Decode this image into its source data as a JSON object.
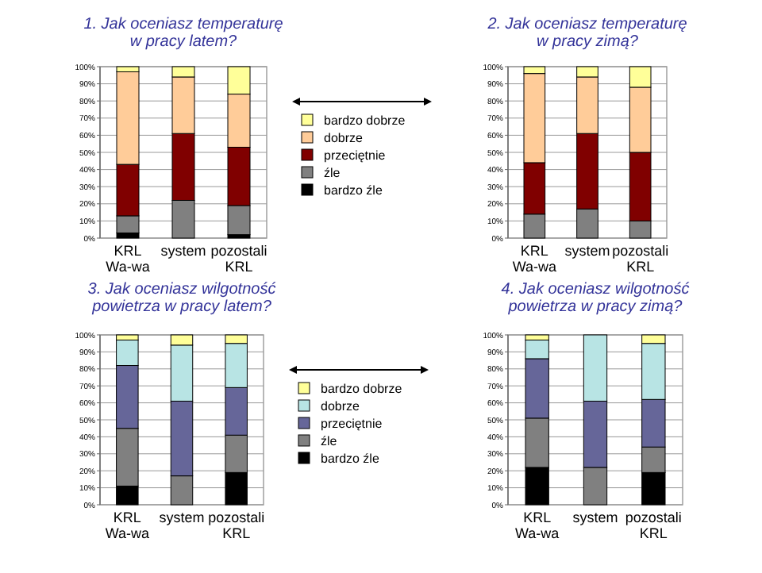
{
  "chart_data": [
    {
      "type": "bar",
      "stacked": true,
      "title": "1. Jak oceniasz temperaturę\nw pracy latem?",
      "categories": [
        "KRL Wa-wa",
        "system",
        "pozostali KRL"
      ],
      "ylim": [
        0,
        100
      ],
      "yticks": [
        {
          "value": 0,
          "label": "0%"
        },
        {
          "value": 10,
          "label": "10%"
        },
        {
          "value": 20,
          "label": "20%"
        },
        {
          "value": 30,
          "label": "30%"
        },
        {
          "value": 40,
          "label": "40%"
        },
        {
          "value": 50,
          "label": "50%"
        },
        {
          "value": 60,
          "label": "60%"
        },
        {
          "value": 70,
          "label": "70%"
        },
        {
          "value": 80,
          "label": "80%"
        },
        {
          "value": 90,
          "label": "90%"
        },
        {
          "value": 100,
          "label": "100%"
        }
      ],
      "grid": "y",
      "legend": "right",
      "series": [
        {
          "name": "bardzo źle",
          "color": "#000000",
          "values": [
            3,
            0,
            2
          ]
        },
        {
          "name": "źle",
          "color": "#808080",
          "values": [
            10,
            22,
            17
          ]
        },
        {
          "name": "przeciętnie",
          "color": "#800000",
          "values": [
            30,
            39,
            34
          ]
        },
        {
          "name": "dobrze",
          "color": "#ffcc99",
          "values": [
            54,
            33,
            31
          ]
        },
        {
          "name": "bardzo dobrze",
          "color": "#ffff99",
          "values": [
            3,
            6,
            16
          ]
        }
      ]
    },
    {
      "type": "bar",
      "stacked": true,
      "title": "2. Jak oceniasz temperaturę\nw pracy zimą?",
      "categories": [
        "KRL Wa-wa",
        "system",
        "pozostali KRL"
      ],
      "ylim": [
        0,
        100
      ],
      "yticks": [
        {
          "value": 0,
          "label": "0%"
        },
        {
          "value": 10,
          "label": "10%"
        },
        {
          "value": 20,
          "label": "20%"
        },
        {
          "value": 30,
          "label": "30%"
        },
        {
          "value": 40,
          "label": "40%"
        },
        {
          "value": 50,
          "label": "50%"
        },
        {
          "value": 60,
          "label": "60%"
        },
        {
          "value": 70,
          "label": "70%"
        },
        {
          "value": 80,
          "label": "80%"
        },
        {
          "value": 90,
          "label": "90%"
        },
        {
          "value": 100,
          "label": "100%"
        }
      ],
      "grid": "y",
      "series": [
        {
          "color": "#000000",
          "values": [
            0,
            0,
            0
          ]
        },
        {
          "color": "#808080",
          "values": [
            14,
            17,
            10
          ]
        },
        {
          "color": "#800000",
          "values": [
            30,
            44,
            40
          ]
        },
        {
          "color": "#ffcc99",
          "values": [
            52,
            33,
            38
          ]
        },
        {
          "color": "#ffff99",
          "values": [
            4,
            6,
            12
          ]
        }
      ]
    },
    {
      "type": "bar",
      "stacked": true,
      "title": "3. Jak oceniasz wilgotność\npowietrza w pracy latem?",
      "categories": [
        "KRL Wa-wa",
        "system",
        "pozostali KRL"
      ],
      "ylim": [
        0,
        100
      ],
      "yticks": [
        {
          "value": 0,
          "label": "0%"
        },
        {
          "value": 10,
          "label": "10%"
        },
        {
          "value": 20,
          "label": "20%"
        },
        {
          "value": 30,
          "label": "30%"
        },
        {
          "value": 40,
          "label": "40%"
        },
        {
          "value": 50,
          "label": "50%"
        },
        {
          "value": 60,
          "label": "60%"
        },
        {
          "value": 70,
          "label": "70%"
        },
        {
          "value": 80,
          "label": "80%"
        },
        {
          "value": 90,
          "label": "90%"
        },
        {
          "value": 100,
          "label": "100%"
        }
      ],
      "grid": "y",
      "legend": "right",
      "series": [
        {
          "name": "bardzo źle",
          "color": "#000000",
          "values": [
            11,
            0,
            19
          ]
        },
        {
          "name": "źle",
          "color": "#808080",
          "values": [
            34,
            17,
            22
          ]
        },
        {
          "name": "przeciętnie",
          "color": "#666699",
          "values": [
            37,
            44,
            28
          ]
        },
        {
          "name": "dobrze",
          "color": "#b8e4e4",
          "values": [
            15,
            33,
            26
          ]
        },
        {
          "name": "bardzo dobrze",
          "color": "#ffff99",
          "values": [
            3,
            6,
            5
          ]
        }
      ]
    },
    {
      "type": "bar",
      "stacked": true,
      "title": "4. Jak oceniasz wilgotność\npowietrza w pracy zimą?",
      "categories": [
        "KRL Wa-wa",
        "system",
        "pozostali KRL"
      ],
      "ylim": [
        0,
        100
      ],
      "yticks": [
        {
          "value": 0,
          "label": "0%"
        },
        {
          "value": 10,
          "label": "10%"
        },
        {
          "value": 20,
          "label": "20%"
        },
        {
          "value": 30,
          "label": "30%"
        },
        {
          "value": 40,
          "label": "40%"
        },
        {
          "value": 50,
          "label": "50%"
        },
        {
          "value": 60,
          "label": "60%"
        },
        {
          "value": 70,
          "label": "70%"
        },
        {
          "value": 80,
          "label": "80%"
        },
        {
          "value": 90,
          "label": "90%"
        },
        {
          "value": 100,
          "label": "100%"
        }
      ],
      "grid": "y",
      "series": [
        {
          "color": "#000000",
          "values": [
            22,
            0,
            19
          ]
        },
        {
          "color": "#808080",
          "values": [
            29,
            22,
            15
          ]
        },
        {
          "color": "#666699",
          "values": [
            35,
            39,
            28
          ]
        },
        {
          "color": "#b8e4e4",
          "values": [
            11,
            39,
            33
          ]
        },
        {
          "color": "#ffff99",
          "values": [
            3,
            0,
            5
          ]
        }
      ]
    }
  ]
}
